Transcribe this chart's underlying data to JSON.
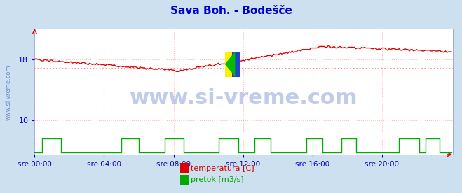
{
  "title": "Sava Boh. - Bodešče",
  "title_color": "#0000cc",
  "bg_color": "#cce0f0",
  "plot_bg_color": "#ffffff",
  "tick_color": "#0000cc",
  "yticks": [
    10,
    18
  ],
  "ylim_temp": [
    5.5,
    22
  ],
  "xlim": [
    0,
    289
  ],
  "xtick_labels": [
    "sre 00:00",
    "sre 04:00",
    "sre 08:00",
    "sre 12:00",
    "sre 16:00",
    "sre 20:00"
  ],
  "xtick_positions": [
    0,
    48,
    96,
    144,
    192,
    240
  ],
  "grid_color": "#ffbbbb",
  "temp_color": "#dd0000",
  "pretok_color": "#00aa00",
  "avg_line_color": "#ff7777",
  "avg_line_value": 16.8,
  "watermark_text": "www.si-vreme.com",
  "watermark_color": "#3355bb",
  "watermark_alpha": 0.3,
  "watermark_fontsize": 22,
  "legend_temp": "temperatura [C]",
  "legend_pretok": "pretok [m3/s]",
  "sidebar_text": "www.si-vreme.com",
  "sidebar_color": "#4466bb",
  "pretok_scale": 0.18,
  "pretok_base": 5.8
}
